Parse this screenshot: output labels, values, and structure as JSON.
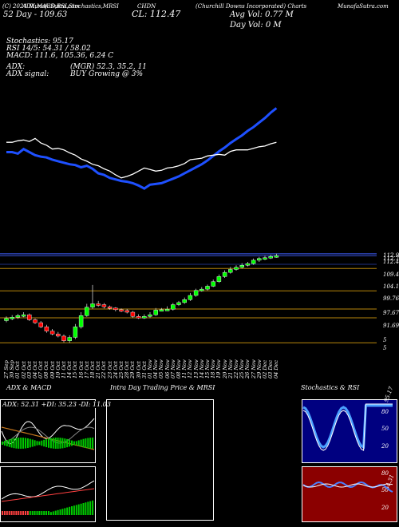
{
  "header": {
    "line1": [
      "(C) 2024 MunafaSutra.com",
      "ADX,MACD,RSI,Stochastics,MRSI",
      "(Churchill Downs Incorporated) Charts",
      "CHDN",
      "MunafaSutra.com"
    ],
    "high_52": "52 Day - 109.63",
    "close": "CL: 112.47",
    "avg_vol": "Avg Vol: 0.77 M",
    "day_vol": "Day Vol: 0   M"
  },
  "indicators": {
    "stoch": "Stochastics: 95.17",
    "rsi": "RSI 14/5: 54.31 / 58.02",
    "macd": "MACD: 111.6,  105.36, 6.24  C",
    "adx": "ADX:",
    "adx_signal": "ADX  signal:",
    "mrsi": "(MGR) 52.3,  35.2,  11",
    "signal": "BUY Growing @ 3%"
  },
  "price_levels": [
    "112.97",
    "112.72",
    "112.47",
    "109.44",
    "104.1",
    "99.76",
    "97.67",
    "91.69",
    "5",
    "5"
  ],
  "date_labels": [
    "27 Sep",
    "30 Sep",
    "01 Oct",
    "02 Oct",
    "03 Oct",
    "04 Oct",
    "07 Oct",
    "08 Oct",
    "09 Oct",
    "10 Oct",
    "11 Oct",
    "14 Oct",
    "15 Oct",
    "16 Oct",
    "17 Oct",
    "18 Oct",
    "21 Oct",
    "22 Oct",
    "23 Oct",
    "24 Oct",
    "25 Oct",
    "28 Oct",
    "29 Oct",
    "30 Oct",
    "31 Oct",
    "01 Nov",
    "04 Nov",
    "05 Nov",
    "06 Nov",
    "07 Nov",
    "08 Nov",
    "11 Nov",
    "12 Nov",
    "13 Nov",
    "14 Nov",
    "15 Nov",
    "18 Nov",
    "19 Nov",
    "20 Nov",
    "21 Nov",
    "22 Nov",
    "25 Nov",
    "26 Nov",
    "27 Nov",
    "29 Nov",
    "02 Dec",
    "03 Dec",
    "04 Dec"
  ],
  "panels": {
    "adx_title": "ADX  & MACD",
    "adx_values": "ADX: 52.31  +DI: 35.23 -DI: 11.03",
    "intra_title": "Intra  Day Trading Price  & MRSI",
    "stoch_title": "Stochastics & RSI",
    "stoch_ticks": [
      "80",
      "50",
      "20"
    ],
    "stoch_last": "95.17",
    "rsi_ticks": [
      "80",
      "50",
      "20"
    ],
    "rsi_last": "54.31"
  },
  "colors": {
    "bull": "#00ff00",
    "bear": "#ff0000",
    "ma_blue": "#1e50ff",
    "gold": "#b8860b",
    "rsi_bg": "#8b0000",
    "stoch_bg": "#000080"
  },
  "chart_data": [
    {
      "type": "line",
      "title": "",
      "series": [
        {
          "values": [
            104,
            104,
            103.8,
            104.4,
            104,
            103.6,
            103.4,
            103.3,
            103,
            102.8,
            102.6,
            102.4,
            102.3,
            102,
            102.2,
            101.8,
            101.2,
            101,
            100.6,
            100.4,
            100.2,
            100.1,
            99.9,
            99.6,
            99.2,
            99.7,
            99.8,
            99.9,
            100.2,
            100.5,
            100.8,
            101.2,
            101.6,
            102,
            102.4,
            102.9,
            103.5,
            104.1,
            104.6,
            105.2,
            105.7,
            106.2,
            106.8,
            107.3,
            107.9,
            108.5,
            109.2,
            109.8
          ]
        },
        {
          "values": [
            105.3,
            105.3,
            105.5,
            105.6,
            105.4,
            105.8,
            105.2,
            104.9,
            104.4,
            104.5,
            104.3,
            103.9,
            103.6,
            103.1,
            102.8,
            102.4,
            102.2,
            101.8,
            101.5,
            101,
            100.6,
            100.8,
            101.1,
            101.5,
            101.9,
            101.7,
            101.5,
            101.6,
            101.9,
            102,
            102.2,
            102.5,
            103,
            103.1,
            103.2,
            103.5,
            103.6,
            103.7,
            103.6,
            104.1,
            104.3,
            104.3,
            104.3,
            104.5,
            104.7,
            104.8,
            105.1,
            105.3
          ]
        }
      ]
    },
    {
      "type": "bar",
      "title": "",
      "categories": [
        "27 Sep",
        "30 Sep",
        "01 Oct",
        "02 Oct",
        "03 Oct",
        "04 Oct",
        "07 Oct",
        "08 Oct",
        "09 Oct",
        "10 Oct",
        "11 Oct",
        "14 Oct",
        "15 Oct",
        "16 Oct",
        "17 Oct",
        "18 Oct",
        "21 Oct",
        "22 Oct",
        "23 Oct",
        "24 Oct",
        "25 Oct",
        "28 Oct",
        "29 Oct",
        "30 Oct",
        "31 Oct",
        "01 Nov",
        "04 Nov",
        "05 Nov",
        "06 Nov",
        "07 Nov",
        "08 Nov",
        "11 Nov",
        "12 Nov",
        "13 Nov",
        "14 Nov",
        "15 Nov",
        "18 Nov",
        "19 Nov",
        "20 Nov",
        "21 Nov",
        "22 Nov",
        "25 Nov",
        "26 Nov",
        "27 Nov",
        "29 Nov",
        "02 Dec",
        "03 Dec",
        "04 Dec"
      ],
      "series": [
        {
          "name": "open",
          "values": [
            97,
            97.5,
            97.8,
            98.2,
            98.4,
            97.2,
            96.5,
            95.5,
            94.5,
            93.8,
            93.3,
            92.2,
            93,
            95.5,
            98.2,
            100.2,
            101,
            100.8,
            100.3,
            100,
            99.6,
            99.4,
            99,
            98,
            97.8,
            98,
            98.4,
            99.5,
            99.6,
            99.7,
            100.8,
            101.3,
            102,
            103,
            104.2,
            104.5,
            105.2,
            106.3,
            107.5,
            108.5,
            109.2,
            109.7,
            110.2,
            110.6,
            111.4,
            111.8,
            112,
            112.3
          ]
        },
        {
          "name": "close",
          "values": [
            97.5,
            97.8,
            98.2,
            98.4,
            97.2,
            96.5,
            95.5,
            94.5,
            93.8,
            93.3,
            92.2,
            93,
            95.5,
            98.2,
            100.2,
            101,
            100.8,
            100.3,
            100,
            99.6,
            99.4,
            99,
            98,
            97.8,
            98,
            98.4,
            99.5,
            99.6,
            99.7,
            100.8,
            101.3,
            102,
            103,
            104.2,
            104.5,
            105.2,
            106.3,
            107.5,
            108.5,
            109.2,
            109.7,
            110.2,
            110.6,
            111.4,
            111.8,
            112,
            112.3,
            112.47
          ]
        },
        {
          "name": "high",
          "values": [
            98,
            98.3,
            98.6,
            99,
            98.7,
            97.5,
            96.9,
            96,
            95,
            94.3,
            93.7,
            93.5,
            96.2,
            99,
            101,
            105.5,
            101.7,
            101.2,
            100.6,
            100.2,
            99.9,
            99.8,
            99.3,
            98.5,
            98.5,
            99,
            100,
            100,
            100.4,
            101.2,
            101.7,
            102.5,
            103.6,
            104.6,
            105,
            105.6,
            106.8,
            108,
            109,
            109.8,
            110.2,
            110.7,
            111,
            111.8,
            112.2,
            112.5,
            112.72,
            112.97
          ]
        },
        {
          "name": "low",
          "values": [
            96.6,
            97.1,
            97.4,
            97.8,
            96.9,
            96.2,
            95.2,
            94.1,
            93.5,
            93,
            91.8,
            91.7,
            92.6,
            95.1,
            97.9,
            99.8,
            100.3,
            99.9,
            99.6,
            99.2,
            99,
            98.7,
            97.7,
            97.4,
            97.4,
            97.6,
            98.1,
            99.2,
            99.3,
            99.4,
            100.5,
            101,
            101.7,
            102.7,
            103.9,
            104.2,
            105,
            106,
            107.2,
            108.2,
            108.9,
            109.4,
            109.9,
            110.3,
            111,
            111.4,
            111.7,
            112
          ]
        }
      ]
    }
  ]
}
